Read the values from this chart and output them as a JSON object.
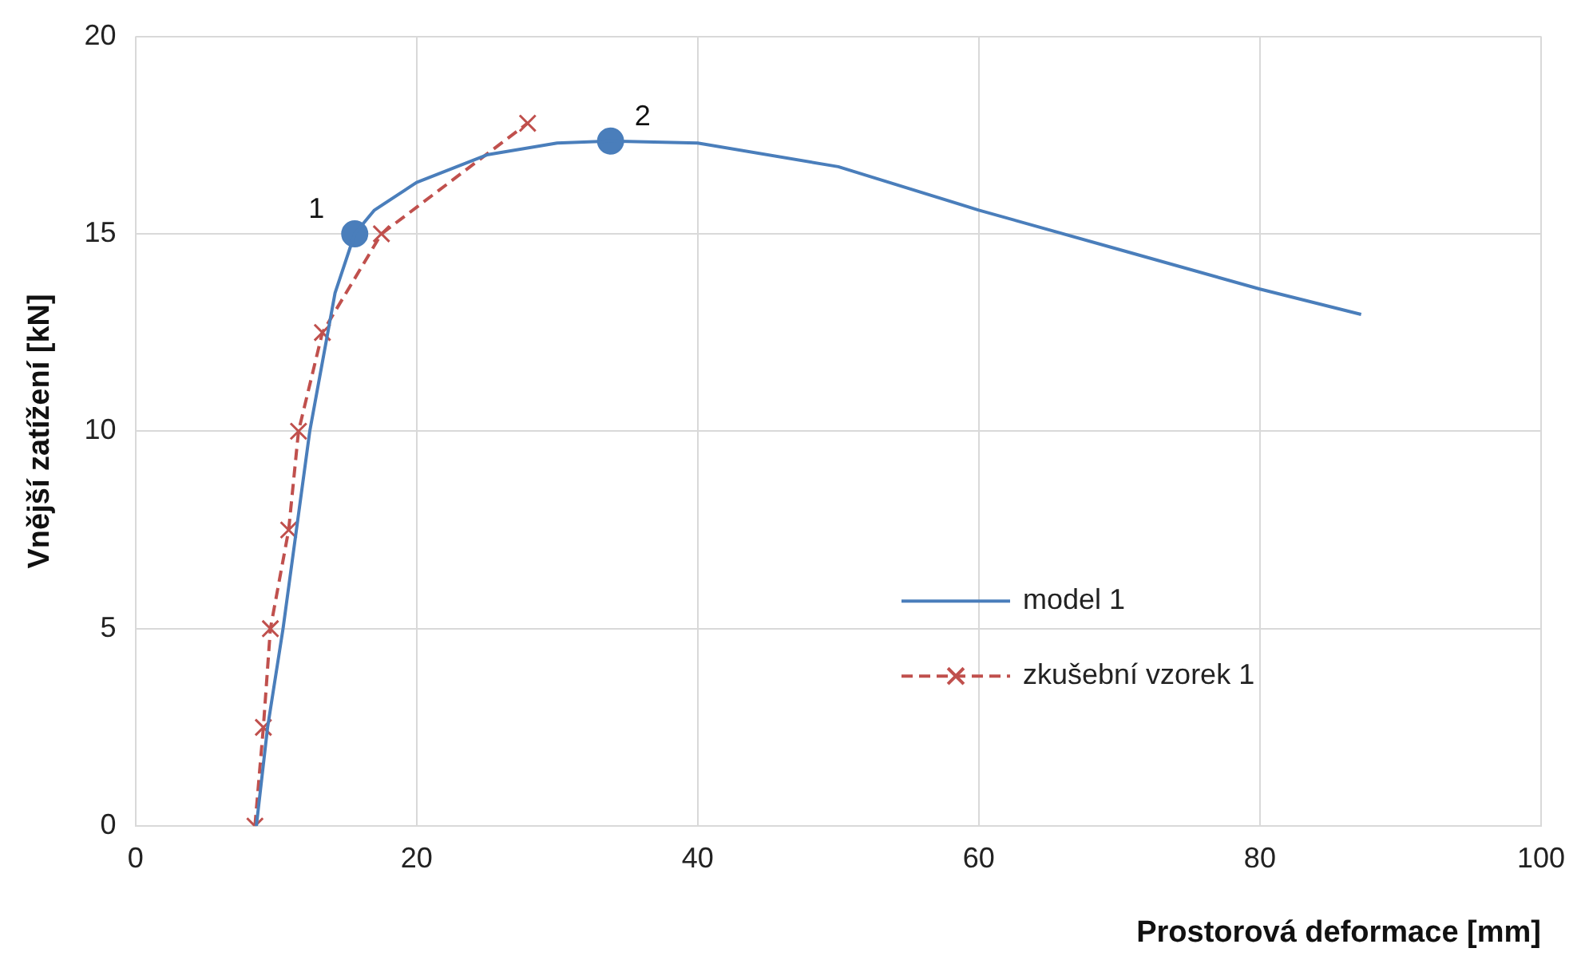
{
  "chart_data": {
    "type": "line",
    "xlabel": "Prostorová deformace [mm]",
    "ylabel": "Vnější zatížení [kN]",
    "xlim": [
      0,
      100
    ],
    "xticks": [
      0,
      20,
      40,
      60,
      80,
      100
    ],
    "ylim": [
      0,
      20
    ],
    "yticks": [
      0,
      5,
      10,
      15,
      20
    ],
    "grid": true,
    "legend": "right",
    "series": [
      {
        "name": "model 1",
        "color": "#4a7ebb",
        "marker": "none",
        "line_style": "solid",
        "x": [
          8.6,
          9.4,
          10.5,
          12.4,
          14.2,
          15.6,
          17,
          20,
          25,
          30,
          33.8,
          40,
          50,
          60,
          70,
          80,
          87.2
        ],
        "values": [
          0,
          2.5,
          5,
          10,
          13.5,
          15.0,
          15.6,
          16.3,
          17.0,
          17.3,
          17.35,
          17.3,
          16.7,
          15.6,
          14.6,
          13.6,
          12.96
        ]
      },
      {
        "name": "zkušební vzorek 1",
        "color": "#c0504d",
        "marker": "cross",
        "line_style": "dashed",
        "x": [
          8.5,
          9.1,
          9.6,
          10.9,
          11.6,
          13.3,
          17.5,
          27.9
        ],
        "values": [
          0,
          2.5,
          5,
          7.5,
          10,
          12.5,
          15,
          17.8
        ]
      },
      {
        "color": "#4a7ebb",
        "type": "scatter",
        "marker": "circle",
        "x": [
          15.6,
          33.8
        ],
        "values": [
          15.0,
          17.35
        ]
      }
    ],
    "annotations": [
      {
        "text": "1",
        "x": 15.6,
        "y": 15.0
      },
      {
        "text": "2",
        "x": 33.8,
        "y": 17.35
      }
    ]
  }
}
